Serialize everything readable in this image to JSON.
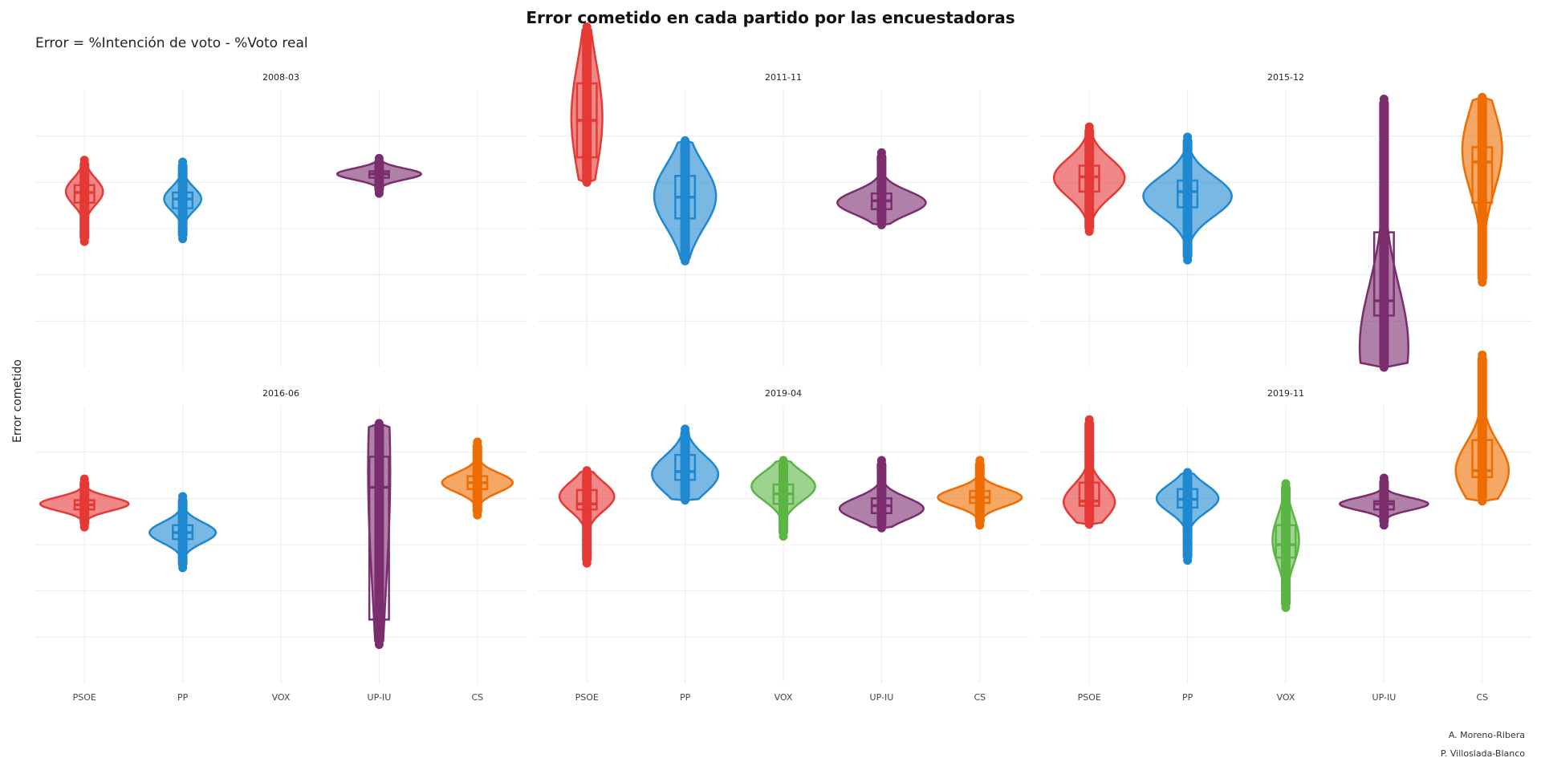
{
  "title": "Error cometido en cada partido por las encuestadoras",
  "subtitle": "Error = %Intención de voto - %Voto real",
  "caption": [
    "A. Moreno-Ribera",
    "P. Villoslada-Blanco"
  ],
  "colors": {
    "PSOE": "#e53935",
    "PP": "#1e88d0",
    "VOX": "#5bb544",
    "UP-IU": "#7b2d6e",
    "CS": "#ef6c00"
  },
  "chart_data": {
    "type": "violin",
    "title": "Error cometido en cada partido por las encuestadoras",
    "subtitle": "Error = %Intención de voto - %Voto real",
    "xlabel": "",
    "ylabel": "Error cometido",
    "categories": [
      "PSOE",
      "PP",
      "VOX",
      "UP-IU",
      "CS"
    ],
    "y_tick_labels_shown": false,
    "grid": true,
    "ylim": [
      -20,
      10
    ],
    "facets": [
      {
        "name": "2008-03",
        "series": [
          {
            "party": "PSOE",
            "min": -6.4,
            "q1": -2.2,
            "median": -1.1,
            "q3": -0.3,
            "max": 2.4,
            "density_peak": -1.0,
            "relative_width": 0.42
          },
          {
            "party": "PP",
            "min": -6.1,
            "q1": -2.8,
            "median": -1.8,
            "q3": -1.1,
            "max": 2.2,
            "density_peak": -1.8,
            "relative_width": 0.42
          },
          {
            "party": "UP-IU",
            "min": -1.2,
            "q1": 0.5,
            "median": 0.9,
            "q3": 1.2,
            "max": 2.6,
            "density_peak": 0.9,
            "relative_width": 0.95
          }
        ]
      },
      {
        "name": "2011-11",
        "series": [
          {
            "party": "PSOE",
            "min": 0.0,
            "q1": 2.7,
            "median": 6.7,
            "q3": 10.7,
            "max": 16.8,
            "density_peak": 7.0,
            "relative_width": 0.35
          },
          {
            "party": "PP",
            "min": -8.5,
            "q1": -3.9,
            "median": -1.6,
            "q3": 0.7,
            "max": 4.5,
            "density_peak": -1.5,
            "relative_width": 0.7
          },
          {
            "party": "UP-IU",
            "min": -4.6,
            "q1": -2.9,
            "median": -2.0,
            "q3": -1.2,
            "max": 3.2,
            "density_peak": -2.2,
            "relative_width": 1.0
          }
        ]
      },
      {
        "name": "2015-12",
        "series": [
          {
            "party": "PSOE",
            "min": -5.3,
            "q1": -1.0,
            "median": 0.6,
            "q3": 1.8,
            "max": 6.0,
            "density_peak": 0.5,
            "relative_width": 0.8
          },
          {
            "party": "PP",
            "min": -8.4,
            "q1": -2.7,
            "median": -1.0,
            "q3": 0.2,
            "max": 4.9,
            "density_peak": -1.5,
            "relative_width": 1.0
          },
          {
            "party": "UP-IU",
            "min": -20.0,
            "q1": -14.4,
            "median": -12.8,
            "q3": -5.4,
            "max": 9.0,
            "density_peak": -17.8,
            "relative_width": 0.55
          },
          {
            "party": "CS",
            "min": -10.8,
            "q1": -2.2,
            "median": 2.2,
            "q3": 3.8,
            "max": 9.2,
            "density_peak": 3.5,
            "relative_width": 0.45
          }
        ]
      },
      {
        "name": "2016-06",
        "series": [
          {
            "party": "PSOE",
            "min": -3.1,
            "q1": -1.2,
            "median": -0.7,
            "q3": -0.2,
            "max": 2.1,
            "density_peak": -0.6,
            "relative_width": 1.0
          },
          {
            "party": "PP",
            "min": -7.5,
            "q1": -4.4,
            "median": -3.7,
            "q3": -2.9,
            "max": 0.2,
            "density_peak": -3.7,
            "relative_width": 0.75
          },
          {
            "party": "UP-IU",
            "min": -15.8,
            "q1": -13.1,
            "median": 1.2,
            "q3": 4.5,
            "max": 8.1,
            "density_peak": 3.0,
            "relative_width": 0.25
          },
          {
            "party": "CS",
            "min": -1.8,
            "q1": 1.0,
            "median": 1.7,
            "q3": 2.4,
            "max": 6.1,
            "density_peak": 1.7,
            "relative_width": 0.8
          }
        ]
      },
      {
        "name": "2019-04",
        "series": [
          {
            "party": "PSOE",
            "min": -7.0,
            "q1": -1.2,
            "median": -0.6,
            "q3": 0.9,
            "max": 3.0,
            "density_peak": 0.2,
            "relative_width": 0.62
          },
          {
            "party": "PP",
            "min": -0.2,
            "q1": 2.0,
            "median": 2.9,
            "q3": 4.7,
            "max": 7.5,
            "density_peak": 2.6,
            "relative_width": 0.75
          },
          {
            "party": "VOX",
            "min": -4.1,
            "q1": -0.6,
            "median": 0.5,
            "q3": 1.5,
            "max": 4.1,
            "density_peak": 1.3,
            "relative_width": 0.72
          },
          {
            "party": "UP-IU",
            "min": -3.2,
            "q1": -1.6,
            "median": -0.8,
            "q3": 0.0,
            "max": 4.1,
            "density_peak": -1.1,
            "relative_width": 0.95
          },
          {
            "party": "CS",
            "min": -2.9,
            "q1": -0.5,
            "median": 0.1,
            "q3": 0.8,
            "max": 4.1,
            "density_peak": 0.1,
            "relative_width": 0.95
          }
        ]
      },
      {
        "name": "2019-11",
        "series": [
          {
            "party": "PSOE",
            "min": -2.8,
            "q1": -0.8,
            "median": -0.3,
            "q3": 1.7,
            "max": 8.5,
            "density_peak": -0.4,
            "relative_width": 0.58
          },
          {
            "party": "PP",
            "min": -6.7,
            "q1": -1.0,
            "median": -0.1,
            "q3": 1.0,
            "max": 2.8,
            "density_peak": 0.0,
            "relative_width": 0.7
          },
          {
            "party": "VOX",
            "min": -11.8,
            "q1": -6.4,
            "median": -5.0,
            "q3": -2.9,
            "max": 1.6,
            "density_peak": -4.5,
            "relative_width": 0.3
          },
          {
            "party": "UP-IU",
            "min": -2.9,
            "q1": -1.2,
            "median": -0.6,
            "q3": -0.3,
            "max": 2.2,
            "density_peak": -0.6,
            "relative_width": 1.0
          },
          {
            "party": "CS",
            "min": -0.3,
            "q1": 2.3,
            "median": 3.0,
            "q3": 6.3,
            "max": 15.5,
            "density_peak": 3.0,
            "relative_width": 0.6
          }
        ]
      }
    ]
  }
}
